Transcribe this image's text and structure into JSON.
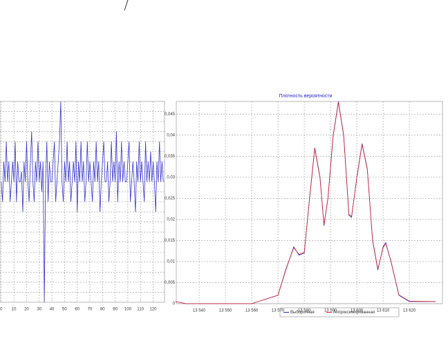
{
  "chart_data": [
    {
      "type": "line",
      "x": [
        0,
        1,
        2,
        3,
        4,
        5,
        6,
        7,
        8,
        9,
        10,
        11,
        12,
        13,
        14,
        15,
        16,
        17,
        18,
        19,
        20,
        21,
        22,
        23,
        24,
        25,
        26,
        27,
        28,
        29,
        30,
        31,
        32,
        33,
        34,
        35,
        36,
        37,
        38,
        39,
        40,
        41,
        42,
        43,
        44,
        45,
        46,
        47,
        48,
        49,
        50,
        51,
        52,
        53,
        54,
        55,
        56,
        57,
        58,
        59,
        60,
        61,
        62,
        63,
        64,
        65,
        66,
        67,
        68,
        69,
        70,
        71,
        72,
        73,
        74,
        75,
        76,
        77,
        78,
        79,
        80,
        81,
        82,
        83,
        84,
        85,
        86,
        87,
        88,
        89,
        90,
        91,
        92,
        93,
        94,
        95,
        96,
        97,
        98,
        99,
        100,
        101,
        102,
        103,
        104,
        105,
        106,
        107,
        108,
        109,
        110,
        111,
        112,
        113,
        114,
        115,
        116,
        117,
        118,
        119,
        120,
        121,
        122,
        123,
        124,
        125,
        126,
        127,
        128
      ],
      "series": [
        {
          "color": "#3333cc",
          "values": [
            12,
            10,
            14,
            12,
            16,
            12,
            14,
            10,
            12,
            14,
            12,
            16,
            10,
            14,
            12,
            12,
            13,
            9,
            14,
            12,
            16,
            12,
            10,
            14,
            17,
            12,
            10,
            14,
            12,
            16,
            12,
            14,
            11,
            14,
            0,
            12,
            16,
            10,
            14,
            12,
            12,
            14,
            16,
            10,
            12,
            14,
            16,
            20,
            12,
            10,
            14,
            12,
            16,
            12,
            14,
            10,
            12,
            14,
            12,
            16,
            9,
            14,
            12,
            16,
            12,
            14,
            10,
            12,
            16,
            12,
            14,
            12,
            10,
            14,
            12,
            16,
            12,
            14,
            9,
            12,
            14,
            16,
            12,
            12,
            14,
            10,
            12,
            16,
            12,
            14,
            12,
            17,
            10,
            14,
            12,
            16,
            12,
            14,
            12,
            12,
            14,
            16,
            10,
            12,
            14,
            12,
            9,
            14,
            12,
            16,
            12,
            14,
            12,
            10,
            16,
            12,
            14,
            12,
            15,
            12,
            14,
            12,
            9,
            14,
            12,
            16,
            12,
            14,
            12
          ]
        }
      ],
      "xlim": [
        -1,
        129
      ],
      "ylim": [
        0,
        20
      ],
      "xticks": [
        0,
        10,
        20,
        30,
        40,
        50,
        60,
        70,
        80,
        90,
        100,
        110,
        120
      ],
      "grid": true
    },
    {
      "type": "line",
      "title": "Плотность вероятности",
      "x": [
        13531,
        13535,
        13560,
        13565,
        13570,
        13573,
        13576,
        13578,
        13580,
        13582,
        13584,
        13586,
        13587.5,
        13589,
        13591,
        13593,
        13595,
        13597,
        13598,
        13600,
        13602,
        13604,
        13606,
        13608,
        13610,
        13611,
        13613,
        13616,
        13620,
        13630
      ],
      "series": [
        {
          "name": "Выборочная",
          "color": "#2222dd",
          "values": [
            0.0005,
            0,
            0,
            0.001,
            0.002,
            0.008,
            0.0135,
            0.0115,
            0.012,
            0.025,
            0.037,
            0.03,
            0.0185,
            0.025,
            0.04,
            0.048,
            0.04,
            0.021,
            0.0205,
            0.03,
            0.038,
            0.032,
            0.015,
            0.008,
            0.0135,
            0.0145,
            0.01,
            0.002,
            0.0005,
            0.0005
          ]
        },
        {
          "name": "Аппроксимированная",
          "color": "#dd2222",
          "values": [
            0.0005,
            0,
            0,
            0.001,
            0.002,
            0.0082,
            0.0133,
            0.0117,
            0.0122,
            0.0248,
            0.0368,
            0.0298,
            0.0188,
            0.0248,
            0.0398,
            0.0478,
            0.0398,
            0.0212,
            0.0207,
            0.0298,
            0.0378,
            0.0318,
            0.0152,
            0.0082,
            0.0133,
            0.0143,
            0.0101,
            0.0021,
            0.0006,
            0.0005
          ]
        }
      ],
      "xlim": [
        13531.3,
        13632.6
      ],
      "ylim": [
        0,
        0.048
      ],
      "xticks": [
        {
          "value": 13540,
          "label": "13 540"
        },
        {
          "value": 13550,
          "label": "13 550"
        },
        {
          "value": 13560,
          "label": "13 560"
        },
        {
          "value": 13570,
          "label": "13 570"
        },
        {
          "value": 13580,
          "label": "13 580"
        },
        {
          "value": 13590,
          "label": "13 590"
        },
        {
          "value": 13600,
          "label": "13 600"
        },
        {
          "value": 13610,
          "label": "13 610"
        },
        {
          "value": 13620,
          "label": "13 620"
        }
      ],
      "yticks": [
        0,
        {
          "value": 0.005,
          "label": "0,005"
        },
        {
          "value": 0.01,
          "label": "0,01"
        },
        {
          "value": 0.015,
          "label": "0,015"
        },
        {
          "value": 0.02,
          "label": "0,02"
        },
        {
          "value": 0.025,
          "label": "0,025"
        },
        {
          "value": 0.03,
          "label": "0,03"
        },
        {
          "value": 0.035,
          "label": "0,035"
        },
        {
          "value": 0.04,
          "label": "0,04"
        },
        {
          "value": 0.045,
          "label": "0,045"
        }
      ],
      "grid": true,
      "legend": "bottom"
    }
  ]
}
